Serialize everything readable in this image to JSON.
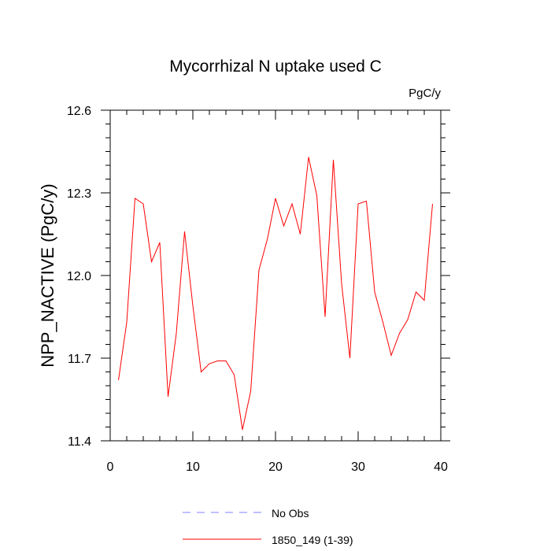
{
  "chart_data": {
    "type": "line",
    "title": "Mycorrhizal N uptake used C",
    "units_label": "PgC/y",
    "ylabel": "NPP_NACTIVE  (PgC/y)",
    "xlabel": "",
    "xlim": [
      0,
      40
    ],
    "ylim": [
      11.4,
      12.6
    ],
    "x_ticks": [
      0,
      10,
      20,
      30,
      40
    ],
    "x_tick_labels": [
      "0",
      "10",
      "20",
      "30",
      "40"
    ],
    "y_ticks": [
      11.4,
      11.7,
      12.0,
      12.3,
      12.6
    ],
    "y_tick_labels": [
      "11.4",
      "11.7",
      "12.0",
      "12.3",
      "12.6"
    ],
    "grid": false,
    "legend_position": "bottom",
    "series": [
      {
        "name": "1850_149 (1-39)",
        "color": "#ff0000",
        "style": "solid",
        "x": [
          1,
          2,
          3,
          4,
          5,
          6,
          7,
          8,
          9,
          10,
          11,
          12,
          13,
          14,
          15,
          16,
          17,
          18,
          19,
          20,
          21,
          22,
          23,
          24,
          25,
          26,
          27,
          28,
          29,
          30,
          31,
          32,
          33,
          34,
          35,
          36,
          37,
          38,
          39
        ],
        "y": [
          11.62,
          11.83,
          12.28,
          12.26,
          12.05,
          12.12,
          11.56,
          11.79,
          12.16,
          11.89,
          11.65,
          11.68,
          11.69,
          11.69,
          11.64,
          11.44,
          11.58,
          12.02,
          12.13,
          12.28,
          12.18,
          12.26,
          12.15,
          12.43,
          12.29,
          11.85,
          12.42,
          11.97,
          11.7,
          12.26,
          12.27,
          11.94,
          11.83,
          11.71,
          11.79,
          11.84,
          11.94,
          11.91,
          12.26
        ]
      }
    ],
    "legend": [
      {
        "label": "No Obs",
        "color": "#8080ff",
        "style": "dashed"
      },
      {
        "label": "1850_149 (1-39)",
        "color": "#ff0000",
        "style": "solid"
      }
    ]
  }
}
